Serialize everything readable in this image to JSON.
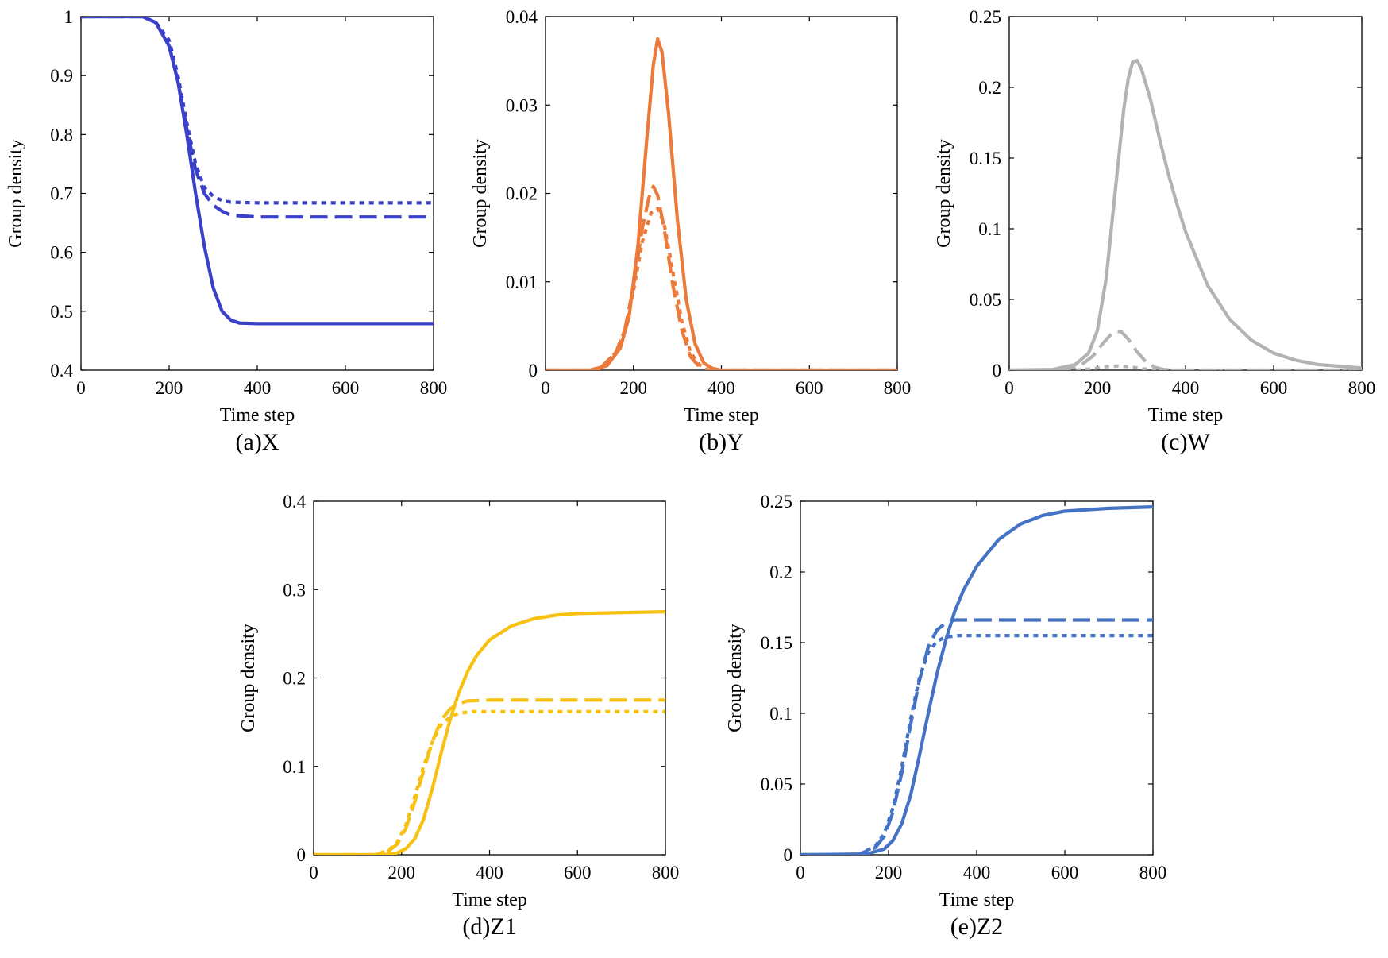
{
  "chart_data": [
    {
      "type": "line",
      "panel_label": "(a)X",
      "xlabel": "Time step",
      "ylabel": "Group density",
      "xlim": [
        0,
        800
      ],
      "ylim": [
        0.4,
        1
      ],
      "xticks": [
        0,
        200,
        400,
        600,
        800
      ],
      "yticks": [
        0.4,
        0.5,
        0.6,
        0.7,
        0.8,
        0.9,
        1
      ],
      "ytick_labels": [
        "0.4",
        "0.5",
        "0.6",
        "0.7",
        "0.8",
        "0.9",
        "1"
      ],
      "color": "#3a40c8",
      "series": [
        {
          "name": "solid",
          "style": "solid",
          "x": [
            0,
            140,
            170,
            200,
            220,
            240,
            260,
            280,
            300,
            320,
            340,
            360,
            400,
            500,
            600,
            800
          ],
          "y": [
            1,
            1,
            0.99,
            0.95,
            0.89,
            0.8,
            0.7,
            0.61,
            0.54,
            0.5,
            0.485,
            0.48,
            0.479,
            0.479,
            0.479,
            0.479
          ]
        },
        {
          "name": "dashed",
          "style": "dashed",
          "x": [
            0,
            140,
            170,
            200,
            220,
            240,
            260,
            280,
            300,
            320,
            340,
            400,
            500,
            600,
            800
          ],
          "y": [
            1,
            1,
            0.99,
            0.95,
            0.89,
            0.81,
            0.74,
            0.7,
            0.68,
            0.67,
            0.663,
            0.66,
            0.66,
            0.66,
            0.66
          ]
        },
        {
          "name": "dotted",
          "style": "dotted",
          "x": [
            0,
            140,
            170,
            200,
            220,
            240,
            260,
            280,
            300,
            320,
            340,
            400,
            500,
            600,
            800
          ],
          "y": [
            1,
            1,
            0.99,
            0.96,
            0.9,
            0.82,
            0.75,
            0.71,
            0.695,
            0.688,
            0.685,
            0.684,
            0.684,
            0.684,
            0.684
          ]
        }
      ]
    },
    {
      "type": "line",
      "panel_label": "(b)Y",
      "xlabel": "Time step",
      "ylabel": "Group density",
      "xlim": [
        0,
        800
      ],
      "ylim": [
        0,
        0.04
      ],
      "xticks": [
        0,
        200,
        400,
        600,
        800
      ],
      "yticks": [
        0,
        0.01,
        0.02,
        0.03,
        0.04
      ],
      "ytick_labels": [
        "0",
        "0.01",
        "0.02",
        "0.03",
        "0.04"
      ],
      "color": "#ec7a3a",
      "series": [
        {
          "name": "solid",
          "style": "solid",
          "x": [
            0,
            100,
            140,
            170,
            190,
            210,
            230,
            245,
            255,
            265,
            280,
            300,
            320,
            340,
            360,
            380,
            400,
            800
          ],
          "y": [
            0,
            0,
            0.0005,
            0.0025,
            0.006,
            0.014,
            0.026,
            0.0345,
            0.0375,
            0.036,
            0.029,
            0.017,
            0.008,
            0.003,
            0.0008,
            0.0002,
            0,
            0
          ]
        },
        {
          "name": "dashed",
          "style": "dashed",
          "x": [
            0,
            120,
            160,
            180,
            200,
            220,
            235,
            245,
            255,
            270,
            290,
            310,
            330,
            350,
            370,
            800
          ],
          "y": [
            0,
            0,
            0.002,
            0.0045,
            0.0095,
            0.016,
            0.0195,
            0.0208,
            0.0198,
            0.016,
            0.0095,
            0.0045,
            0.0015,
            0.0004,
            0,
            0
          ]
        },
        {
          "name": "dotted",
          "style": "dotted",
          "x": [
            0,
            120,
            160,
            180,
            200,
            220,
            240,
            255,
            270,
            290,
            310,
            330,
            350,
            370,
            800
          ],
          "y": [
            0,
            0,
            0.002,
            0.0045,
            0.009,
            0.0145,
            0.0178,
            0.0183,
            0.0165,
            0.011,
            0.0055,
            0.002,
            0.0006,
            0,
            0
          ]
        }
      ]
    },
    {
      "type": "line",
      "panel_label": "(c)W",
      "xlabel": "Time step",
      "ylabel": "Group density",
      "xlim": [
        0,
        800
      ],
      "ylim": [
        0,
        0.25
      ],
      "xticks": [
        0,
        200,
        400,
        600,
        800
      ],
      "yticks": [
        0,
        0.05,
        0.1,
        0.15,
        0.2,
        0.25
      ],
      "ytick_labels": [
        "0",
        "0.05",
        "0.1",
        "0.15",
        "0.2",
        "0.25"
      ],
      "color": "#b3b3b3",
      "series": [
        {
          "name": "solid",
          "style": "solid",
          "x": [
            0,
            100,
            150,
            180,
            200,
            220,
            240,
            260,
            270,
            280,
            290,
            300,
            320,
            340,
            360,
            380,
            400,
            450,
            500,
            550,
            600,
            650,
            700,
            800
          ],
          "y": [
            0,
            0.0005,
            0.004,
            0.012,
            0.028,
            0.065,
            0.125,
            0.185,
            0.206,
            0.218,
            0.219,
            0.213,
            0.192,
            0.165,
            0.14,
            0.118,
            0.098,
            0.06,
            0.036,
            0.021,
            0.012,
            0.007,
            0.004,
            0.0015
          ]
        },
        {
          "name": "dashed",
          "style": "dashed",
          "x": [
            0,
            120,
            160,
            190,
            210,
            230,
            245,
            255,
            270,
            290,
            310,
            330,
            350,
            370,
            800
          ],
          "y": [
            0,
            0,
            0.003,
            0.01,
            0.018,
            0.025,
            0.0275,
            0.027,
            0.022,
            0.013,
            0.006,
            0.002,
            0.0005,
            0,
            0
          ]
        },
        {
          "name": "dotted",
          "style": "dotted",
          "x": [
            0,
            150,
            190,
            220,
            245,
            270,
            300,
            330,
            800
          ],
          "y": [
            0,
            0,
            0.001,
            0.0025,
            0.003,
            0.0025,
            0.0012,
            0,
            0
          ]
        }
      ]
    },
    {
      "type": "line",
      "panel_label": "(d)Z1",
      "xlabel": "Time step",
      "ylabel": "Group density",
      "xlim": [
        0,
        800
      ],
      "ylim": [
        0,
        0.4
      ],
      "xticks": [
        0,
        200,
        400,
        600,
        800
      ],
      "yticks": [
        0,
        0.1,
        0.2,
        0.3,
        0.4
      ],
      "ytick_labels": [
        "0",
        "0.1",
        "0.2",
        "0.3",
        "0.4"
      ],
      "color": "#f7c112",
      "series": [
        {
          "name": "solid",
          "style": "solid",
          "x": [
            0,
            160,
            190,
            210,
            230,
            250,
            270,
            290,
            310,
            330,
            350,
            370,
            400,
            450,
            500,
            550,
            600,
            700,
            800
          ],
          "y": [
            0,
            0,
            0.002,
            0.007,
            0.018,
            0.04,
            0.075,
            0.115,
            0.152,
            0.183,
            0.207,
            0.225,
            0.243,
            0.259,
            0.267,
            0.271,
            0.273,
            0.274,
            0.275
          ]
        },
        {
          "name": "dashed",
          "style": "dashed",
          "x": [
            0,
            140,
            170,
            190,
            210,
            230,
            250,
            270,
            290,
            310,
            330,
            350,
            400,
            500,
            800
          ],
          "y": [
            0,
            0,
            0.004,
            0.012,
            0.03,
            0.06,
            0.095,
            0.128,
            0.152,
            0.165,
            0.171,
            0.174,
            0.175,
            0.175,
            0.175
          ]
        },
        {
          "name": "dotted",
          "style": "dotted",
          "x": [
            0,
            140,
            170,
            190,
            210,
            230,
            250,
            270,
            290,
            310,
            330,
            360,
            400,
            500,
            800
          ],
          "y": [
            0,
            0,
            0.005,
            0.014,
            0.034,
            0.066,
            0.1,
            0.128,
            0.147,
            0.156,
            0.16,
            0.162,
            0.162,
            0.162,
            0.162
          ]
        }
      ]
    },
    {
      "type": "line",
      "panel_label": "(e)Z2",
      "xlabel": "Time step",
      "ylabel": "Group density",
      "xlim": [
        0,
        800
      ],
      "ylim": [
        0,
        0.25
      ],
      "xticks": [
        0,
        200,
        400,
        600,
        800
      ],
      "yticks": [
        0,
        0.05,
        0.1,
        0.15,
        0.2,
        0.25
      ],
      "ytick_labels": [
        "0",
        "0.05",
        "0.1",
        "0.15",
        "0.2",
        "0.25"
      ],
      "color": "#4472c4",
      "series": [
        {
          "name": "solid",
          "style": "solid",
          "x": [
            0,
            150,
            190,
            210,
            230,
            250,
            270,
            290,
            310,
            330,
            350,
            370,
            400,
            450,
            500,
            550,
            600,
            700,
            800
          ],
          "y": [
            0,
            0.0005,
            0.004,
            0.01,
            0.022,
            0.042,
            0.07,
            0.1,
            0.128,
            0.152,
            0.172,
            0.187,
            0.204,
            0.223,
            0.234,
            0.24,
            0.243,
            0.245,
            0.246
          ]
        },
        {
          "name": "dashed",
          "style": "dashed",
          "x": [
            0,
            130,
            170,
            190,
            210,
            230,
            250,
            270,
            290,
            310,
            330,
            350,
            400,
            500,
            800
          ],
          "y": [
            0,
            0,
            0.005,
            0.013,
            0.03,
            0.058,
            0.092,
            0.123,
            0.147,
            0.159,
            0.164,
            0.166,
            0.166,
            0.166,
            0.166
          ]
        },
        {
          "name": "dotted",
          "style": "dotted",
          "x": [
            0,
            130,
            170,
            190,
            210,
            230,
            250,
            270,
            290,
            310,
            330,
            360,
            400,
            500,
            800
          ],
          "y": [
            0,
            0,
            0.006,
            0.015,
            0.033,
            0.062,
            0.096,
            0.125,
            0.143,
            0.151,
            0.154,
            0.155,
            0.155,
            0.155,
            0.155
          ]
        }
      ]
    }
  ]
}
